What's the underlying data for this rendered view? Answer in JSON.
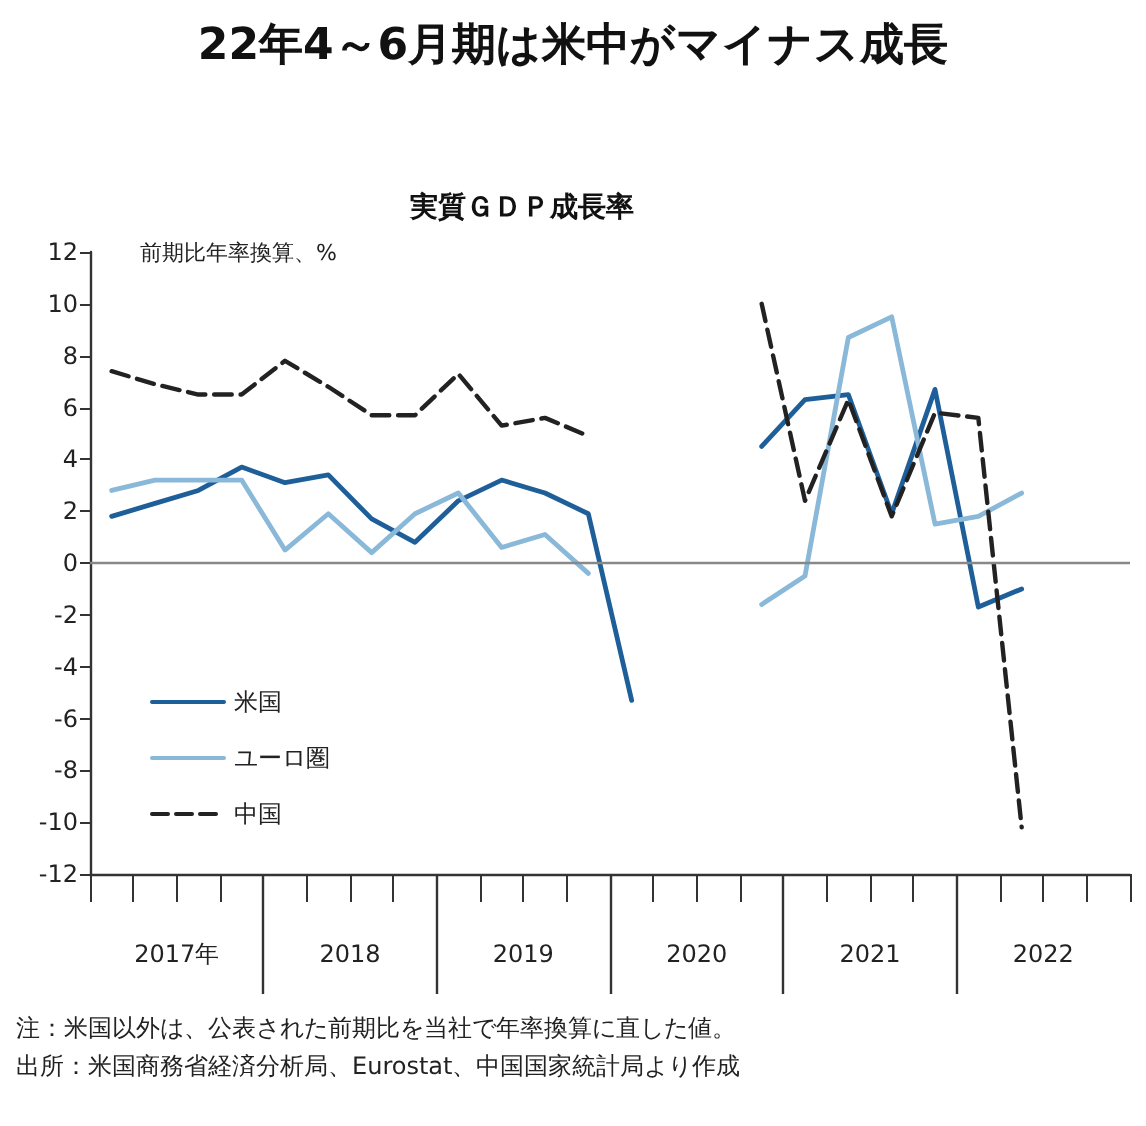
{
  "chart_data": {
    "type": "line",
    "title": "22年4～6月期は米中がマイナス成長",
    "subtitle": "実質ＧＤＰ成長率",
    "ylabel": "前期比年率換算、%",
    "x": [
      2017.125,
      2017.375,
      2017.625,
      2017.875,
      2018.125,
      2018.375,
      2018.625,
      2018.875,
      2019.125,
      2019.375,
      2019.625,
      2019.875,
      2020.125,
      2020.375,
      2020.625,
      2020.875,
      2021.125,
      2021.375,
      2021.625,
      2021.875,
      2022.125,
      2022.375
    ],
    "series": [
      {
        "name": "米国",
        "color": "#1f5f99",
        "line_style": "solid",
        "values": [
          1.8,
          2.3,
          2.8,
          3.7,
          3.1,
          3.4,
          1.7,
          0.8,
          2.4,
          3.2,
          2.7,
          1.9,
          -5.3,
          null,
          null,
          4.5,
          6.3,
          6.5,
          1.9,
          6.7,
          -1.7,
          -1.0
        ]
      },
      {
        "name": "ユーロ圏",
        "color": "#8ab8d8",
        "line_style": "solid",
        "values": [
          2.8,
          3.2,
          3.2,
          3.2,
          0.5,
          1.9,
          0.4,
          1.9,
          2.7,
          0.6,
          1.1,
          -0.4,
          null,
          null,
          null,
          -1.6,
          -0.5,
          8.7,
          9.5,
          1.5,
          1.8,
          2.7
        ]
      },
      {
        "name": "中国",
        "color": "#222222",
        "line_style": "dashed",
        "values": [
          7.4,
          6.9,
          6.5,
          6.5,
          7.8,
          6.8,
          5.7,
          5.7,
          7.3,
          5.3,
          5.6,
          4.9,
          null,
          null,
          null,
          10.0,
          2.4,
          6.3,
          1.8,
          5.8,
          5.6,
          -10.2
        ]
      }
    ],
    "xlim": [
      2017,
      2023
    ],
    "xticks": [
      {
        "value": 2017,
        "label": null
      },
      {
        "value": 2017.25,
        "label": null
      },
      {
        "value": 2017.5,
        "label": "2017年"
      },
      {
        "value": 2017.75,
        "label": null
      },
      {
        "value": 2018,
        "label": null
      },
      {
        "value": 2018.25,
        "label": null
      },
      {
        "value": 2018.5,
        "label": "2018"
      },
      {
        "value": 2018.75,
        "label": null
      },
      {
        "value": 2019,
        "label": null
      },
      {
        "value": 2019.25,
        "label": null
      },
      {
        "value": 2019.5,
        "label": "2019"
      },
      {
        "value": 2019.75,
        "label": null
      },
      {
        "value": 2020,
        "label": null
      },
      {
        "value": 2020.25,
        "label": null
      },
      {
        "value": 2020.5,
        "label": "2020"
      },
      {
        "value": 2020.75,
        "label": null
      },
      {
        "value": 2021,
        "label": null
      },
      {
        "value": 2021.25,
        "label": null
      },
      {
        "value": 2021.5,
        "label": "2021"
      },
      {
        "value": 2021.75,
        "label": null
      },
      {
        "value": 2022,
        "label": null
      },
      {
        "value": 2022.25,
        "label": null
      },
      {
        "value": 2022.5,
        "label": "2022"
      },
      {
        "value": 2022.75,
        "label": null
      },
      {
        "value": 2023,
        "label": null
      }
    ],
    "ylim": [
      -12,
      12
    ],
    "yticks": [
      -12,
      -10,
      -8,
      -6,
      -4,
      -2,
      0,
      2,
      4,
      6,
      8,
      10,
      12
    ],
    "grid": false,
    "legend": "bottom left",
    "marker": "none",
    "ref_lines": [
      {
        "axis": "y",
        "value": 0,
        "label": null,
        "color": "#888888"
      }
    ],
    "annotations": [
      "注：米国以外は、公表された前期比を当社で年率換算に直した値。",
      "出所：米国商務省経済分析局、Eurostat、中国国家統計局より作成"
    ]
  }
}
